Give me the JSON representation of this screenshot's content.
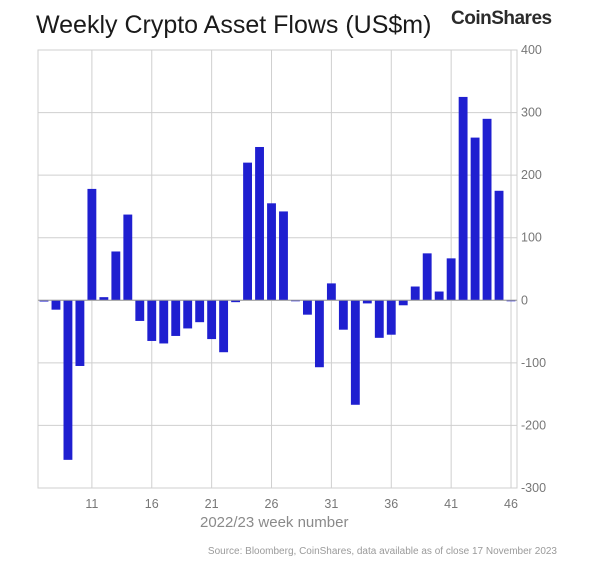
{
  "header": {
    "title": "Weekly Crypto Asset Flows (US$m)",
    "brand": "CoinShares"
  },
  "footer": {
    "source": "Source: Bloomberg, CoinShares, data available as of close 17 November 2023"
  },
  "colors": {
    "bar": "#1f1fd0",
    "grid": "#cfcfcf",
    "text": "#1a1a1a"
  },
  "chart_data": {
    "type": "bar",
    "title": "Weekly Crypto Asset Flows (US$m)",
    "xlabel": "2022/23 week number",
    "ylabel": "",
    "ylim": [
      -300,
      400
    ],
    "yticks": [
      -300,
      -200,
      -100,
      0,
      100,
      200,
      300,
      400
    ],
    "y_axis_side": "right",
    "xticks": [
      11,
      16,
      21,
      26,
      31,
      36,
      41,
      46
    ],
    "grid": true,
    "categories": [
      7,
      8,
      9,
      10,
      11,
      12,
      13,
      14,
      15,
      16,
      17,
      18,
      19,
      20,
      21,
      22,
      23,
      24,
      25,
      26,
      27,
      28,
      29,
      30,
      31,
      32,
      33,
      34,
      35,
      36,
      37,
      38,
      39,
      40,
      41,
      42,
      43,
      44,
      45,
      46
    ],
    "values": [
      -2,
      -15,
      -255,
      -105,
      178,
      5,
      78,
      137,
      -33,
      -65,
      -69,
      -57,
      -45,
      -35,
      -62,
      -83,
      -3,
      220,
      245,
      155,
      142,
      0,
      -23,
      -107,
      27,
      -47,
      -167,
      -5,
      -60,
      -55,
      -8,
      22,
      75,
      14,
      67,
      325,
      260,
      290,
      175,
      0
    ]
  }
}
